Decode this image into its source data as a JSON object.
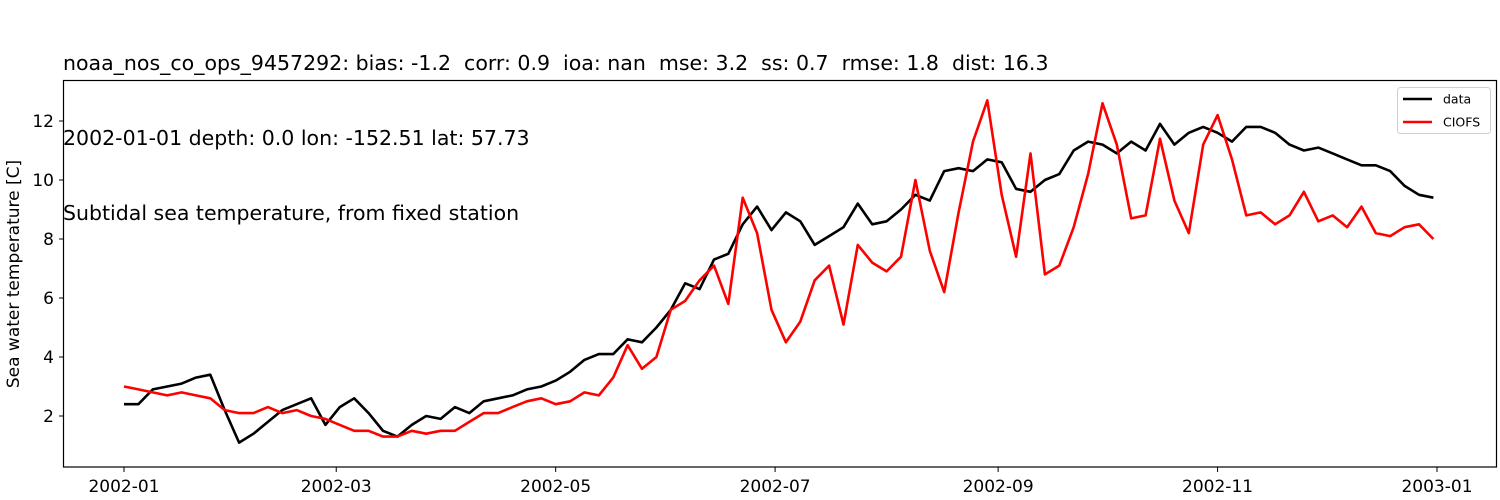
{
  "titles": {
    "line1": "noaa_nos_co_ops_9457292: bias: -1.2  corr: 0.9  ioa: nan  mse: 3.2  ss: 0.7  rmse: 1.8  dist: 16.3",
    "line2": "2002-01-01 depth: 0.0 lon: -152.51 lat: 57.73",
    "line3": "Subtidal sea temperature, from fixed station"
  },
  "chart_data": {
    "type": "line",
    "title": "noaa_nos_co_ops_9457292: bias: -1.2  corr: 0.9  ioa: nan  mse: 3.2  ss: 0.7  rmse: 1.8  dist: 16.3 / 2002-01-01 depth: 0.0 lon: -152.51 lat: 57.73 / Subtidal sea temperature, from fixed station",
    "xlabel": "",
    "ylabel": "Sea water temperature [C]",
    "xlim": [
      "2001-12-13",
      "2003-01-19"
    ],
    "ylim": [
      0.5,
      13.4
    ],
    "xticks": [
      "2002-01",
      "2002-03",
      "2002-05",
      "2002-07",
      "2002-09",
      "2002-11",
      "2003-01"
    ],
    "yticks": [
      2,
      4,
      6,
      8,
      10,
      12
    ],
    "grid": false,
    "legend_position": "upper right",
    "x_unit": "day of year 2002 (0 = 2002-01-01)",
    "x": [
      0,
      4,
      8,
      12,
      16,
      20,
      24,
      28,
      32,
      36,
      40,
      44,
      48,
      52,
      56,
      60,
      64,
      68,
      72,
      76,
      80,
      84,
      88,
      92,
      96,
      100,
      104,
      108,
      112,
      116,
      120,
      124,
      128,
      132,
      136,
      140,
      144,
      148,
      152,
      156,
      160,
      164,
      168,
      172,
      176,
      180,
      184,
      188,
      192,
      196,
      200,
      204,
      208,
      212,
      216,
      220,
      224,
      228,
      232,
      236,
      240,
      244,
      248,
      252,
      256,
      260,
      264,
      268,
      272,
      276,
      280,
      284,
      288,
      292,
      296,
      300,
      304,
      308,
      312,
      316,
      320,
      324,
      328,
      332,
      336,
      340,
      344,
      348,
      352,
      356,
      360,
      364
    ],
    "series": [
      {
        "name": "data",
        "color": "#000000",
        "values": [
          2.4,
          2.4,
          2.9,
          3.0,
          3.1,
          3.3,
          3.4,
          2.2,
          1.1,
          1.4,
          1.8,
          2.2,
          2.4,
          2.6,
          1.7,
          2.3,
          2.6,
          2.1,
          1.5,
          1.3,
          1.7,
          2.0,
          1.9,
          2.3,
          2.1,
          2.5,
          2.6,
          2.7,
          2.9,
          3.0,
          3.2,
          3.5,
          3.9,
          4.1,
          4.1,
          4.6,
          4.5,
          5.0,
          5.6,
          6.5,
          6.3,
          7.3,
          7.5,
          8.5,
          9.1,
          8.3,
          8.9,
          8.6,
          7.8,
          8.1,
          8.4,
          9.2,
          8.5,
          8.6,
          9.0,
          9.5,
          9.3,
          10.3,
          10.4,
          10.3,
          10.7,
          10.6,
          9.7,
          9.6,
          10.0,
          10.2,
          11.0,
          11.3,
          11.2,
          10.9,
          11.3,
          11.0,
          11.9,
          11.2,
          11.6,
          11.8,
          11.6,
          11.3,
          11.8,
          11.8,
          11.6,
          11.2,
          11.0,
          11.1,
          10.9,
          10.7,
          10.5,
          10.5,
          10.3,
          9.8,
          9.5,
          9.4
        ]
      },
      {
        "name": "CIOFS",
        "color": "#ff0000",
        "values": [
          3.0,
          2.9,
          2.8,
          2.7,
          2.8,
          2.7,
          2.6,
          2.2,
          2.1,
          2.1,
          2.3,
          2.1,
          2.2,
          2.0,
          1.9,
          1.7,
          1.5,
          1.5,
          1.3,
          1.3,
          1.5,
          1.4,
          1.5,
          1.5,
          1.8,
          2.1,
          2.1,
          2.3,
          2.5,
          2.6,
          2.4,
          2.5,
          2.8,
          2.7,
          3.3,
          4.4,
          3.6,
          4.0,
          5.6,
          5.9,
          6.6,
          7.1,
          5.8,
          9.4,
          8.2,
          5.6,
          4.5,
          5.2,
          6.6,
          7.1,
          5.1,
          7.8,
          7.2,
          6.9,
          7.4,
          10.0,
          7.6,
          6.2,
          8.9,
          11.3,
          12.7,
          9.5,
          7.4,
          10.9,
          6.8,
          7.1,
          8.4,
          10.2,
          12.6,
          11.2,
          8.7,
          8.8,
          11.4,
          9.3,
          8.2,
          11.2,
          12.2,
          10.7,
          8.8,
          8.9,
          8.5,
          8.8,
          9.6,
          8.6,
          8.8,
          8.4,
          9.1,
          8.2,
          8.1,
          8.4,
          8.5,
          8.0
        ]
      }
    ]
  },
  "legend": {
    "items": [
      {
        "label": "data",
        "color": "#000000"
      },
      {
        "label": "CIOFS",
        "color": "#ff0000"
      }
    ]
  },
  "axes": {
    "ylabel": "Sea water temperature [C]",
    "xtick_labels": [
      "2002-01",
      "2002-03",
      "2002-05",
      "2002-07",
      "2002-09",
      "2002-11",
      "2003-01"
    ],
    "ytick_labels": [
      "2",
      "4",
      "6",
      "8",
      "10",
      "12"
    ]
  }
}
